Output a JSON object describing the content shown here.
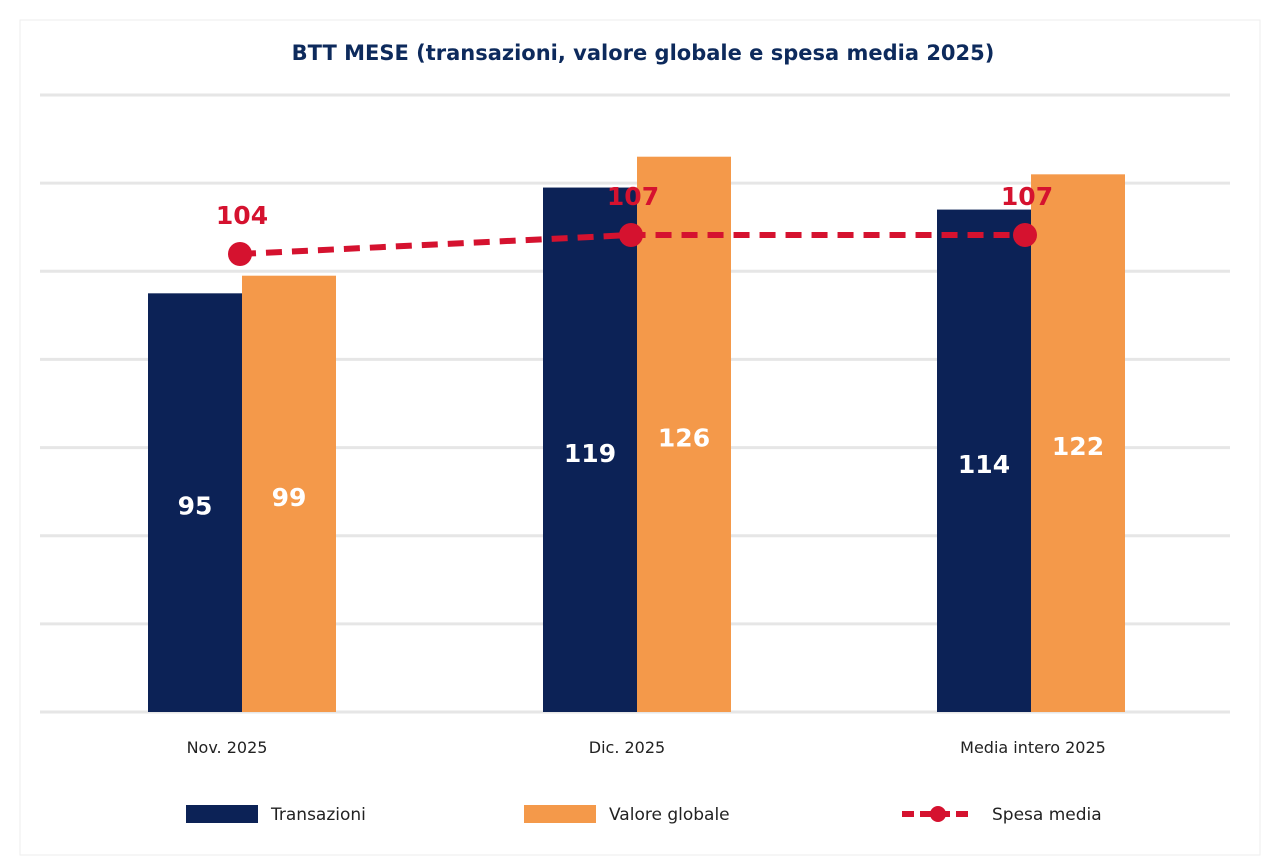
{
  "chart_data": {
    "type": "bar",
    "title": "BTT MESE (transazioni, valore globale e spesa media 2025)",
    "categories": [
      "Nov. 2025",
      "Dic. 2025",
      "Media intero 2025"
    ],
    "series": [
      {
        "name": "Transazioni",
        "type": "bar",
        "values": [
          95,
          119,
          114
        ],
        "color": "#0c2256"
      },
      {
        "name": "Valore globale",
        "type": "bar",
        "values": [
          99,
          126,
          122
        ],
        "color": "#f4994a"
      },
      {
        "name": "Spesa media",
        "type": "line",
        "style": "dashed",
        "values": [
          104,
          107,
          107
        ],
        "color": "#d5122f"
      }
    ],
    "ylim": [
      0,
      140
    ],
    "grid": true,
    "legend": "bottom",
    "xlabel": "",
    "ylabel": ""
  }
}
